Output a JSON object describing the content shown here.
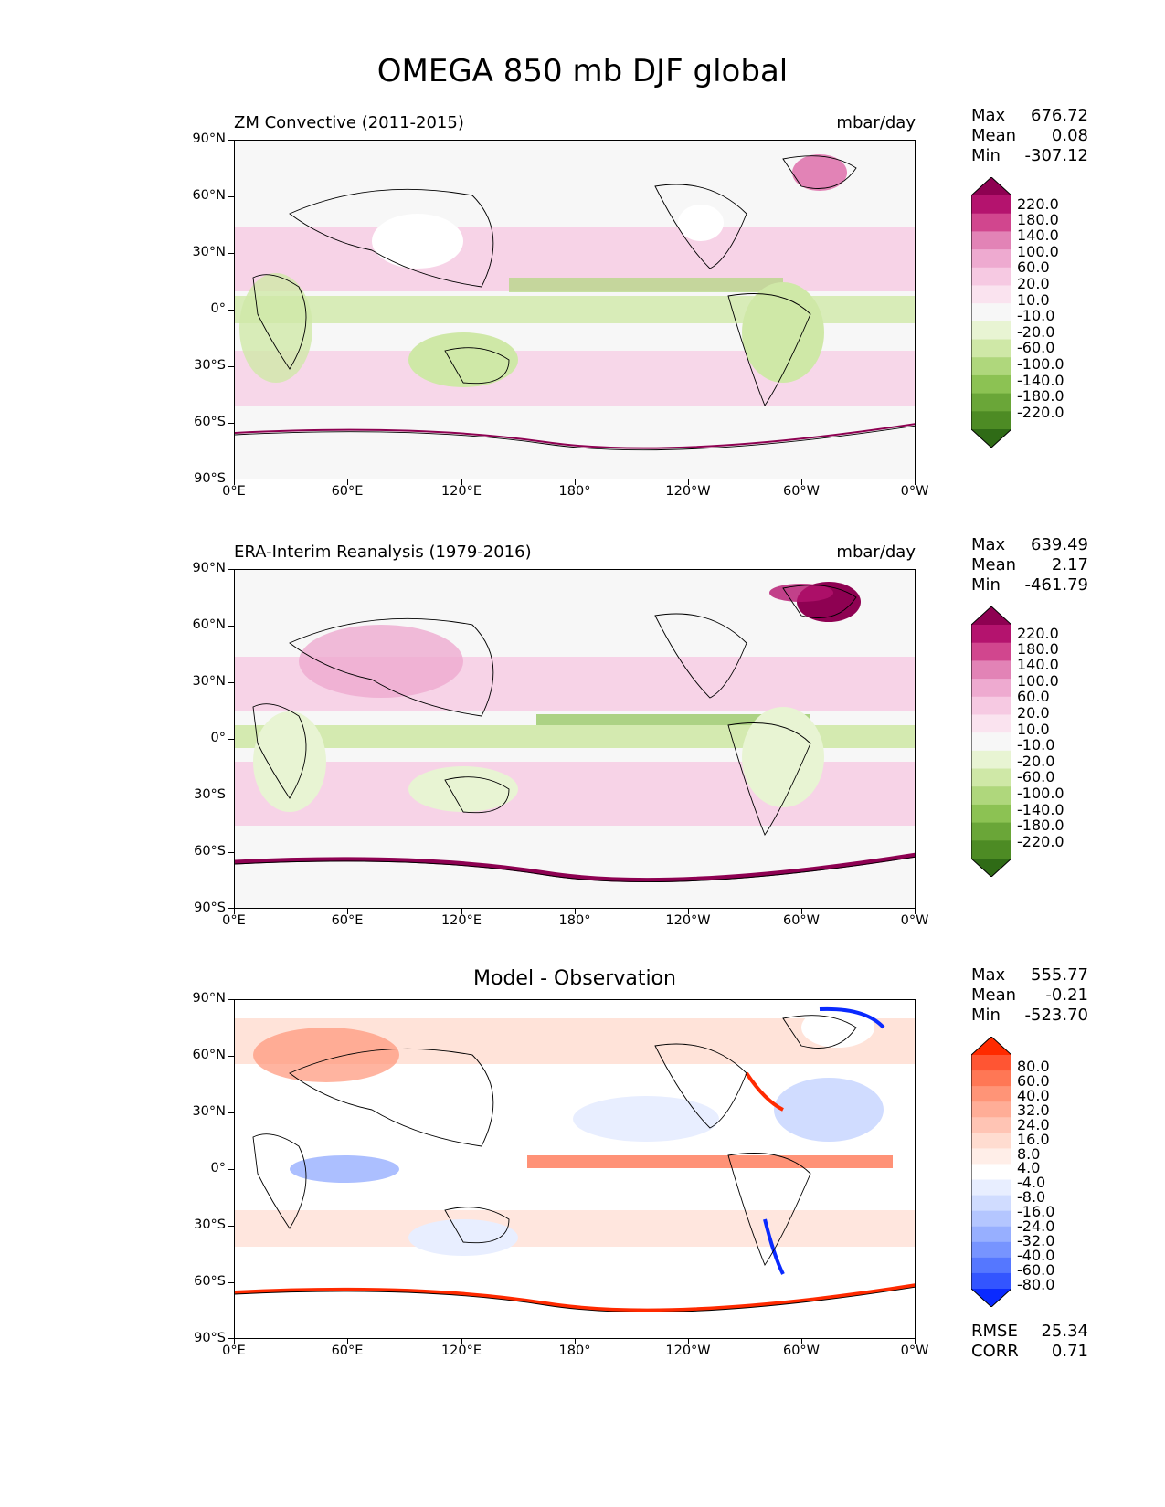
{
  "figure": {
    "title": "OMEGA 850 mb DJF global"
  },
  "axes": {
    "lat_labels": [
      "90°N",
      "60°N",
      "30°N",
      "0°",
      "30°S",
      "60°S",
      "90°S"
    ],
    "lon_labels": [
      "0°E",
      "60°E",
      "120°E",
      "180°",
      "120°W",
      "60°W",
      "0°W"
    ]
  },
  "panels": [
    {
      "id": "model",
      "title_left": "ZM Convective (2011-2015)",
      "title_right": "mbar/day",
      "stats": {
        "max_label": "Max",
        "max": "676.72",
        "mean_label": "Mean",
        "mean": "0.08",
        "min_label": "Min",
        "min": "-307.12"
      },
      "colorbar_labels": [
        "220.0",
        "180.0",
        "140.0",
        "100.0",
        "60.0",
        "20.0",
        "10.0",
        "-10.0",
        "-20.0",
        "-60.0",
        "-100.0",
        "-140.0",
        "-180.0",
        "-220.0"
      ],
      "colors": [
        "#8e0152",
        "#b4136e",
        "#d1468e",
        "#e283b6",
        "#eeaad0",
        "#f6c9e2",
        "#fae3ef",
        "#f7f7f7",
        "#e8f4d3",
        "#cfe8a7",
        "#afd77c",
        "#8cc253",
        "#6aa638",
        "#4d8b24",
        "#2f6b16"
      ]
    },
    {
      "id": "obs",
      "title_left": "ERA-Interim Reanalysis (1979-2016)",
      "title_right": "mbar/day",
      "stats": {
        "max_label": "Max",
        "max": "639.49",
        "mean_label": "Mean",
        "mean": "2.17",
        "min_label": "Min",
        "min": "-461.79"
      },
      "colorbar_labels": [
        "220.0",
        "180.0",
        "140.0",
        "100.0",
        "60.0",
        "20.0",
        "10.0",
        "-10.0",
        "-20.0",
        "-60.0",
        "-100.0",
        "-140.0",
        "-180.0",
        "-220.0"
      ],
      "colors": [
        "#8e0152",
        "#b4136e",
        "#d1468e",
        "#e283b6",
        "#eeaad0",
        "#f6c9e2",
        "#fae3ef",
        "#f7f7f7",
        "#e8f4d3",
        "#cfe8a7",
        "#afd77c",
        "#8cc253",
        "#6aa638",
        "#4d8b24",
        "#2f6b16"
      ]
    },
    {
      "id": "diff",
      "title_center": "Model - Observation",
      "stats": {
        "max_label": "Max",
        "max": "555.77",
        "mean_label": "Mean",
        "mean": "-0.21",
        "min_label": "Min",
        "min": "-523.70"
      },
      "colorbar_labels": [
        "80.0",
        "60.0",
        "40.0",
        "32.0",
        "24.0",
        "16.0",
        "8.0",
        "4.0",
        "-4.0",
        "-8.0",
        "-16.0",
        "-24.0",
        "-32.0",
        "-40.0",
        "-60.0",
        "-80.0"
      ],
      "colors": [
        "#ff2a00",
        "#ff5533",
        "#ff7755",
        "#ff9477",
        "#ffad97",
        "#ffc4b4",
        "#ffdcd0",
        "#ffeee8",
        "#ffffff",
        "#e8eeff",
        "#d0dcff",
        "#b4c6ff",
        "#97afff",
        "#7794ff",
        "#5577ff",
        "#3355ff",
        "#0a2aff"
      ],
      "footer": {
        "rmse_label": "RMSE",
        "rmse": "25.34",
        "corr_label": "CORR",
        "corr": "0.71"
      }
    }
  ]
}
